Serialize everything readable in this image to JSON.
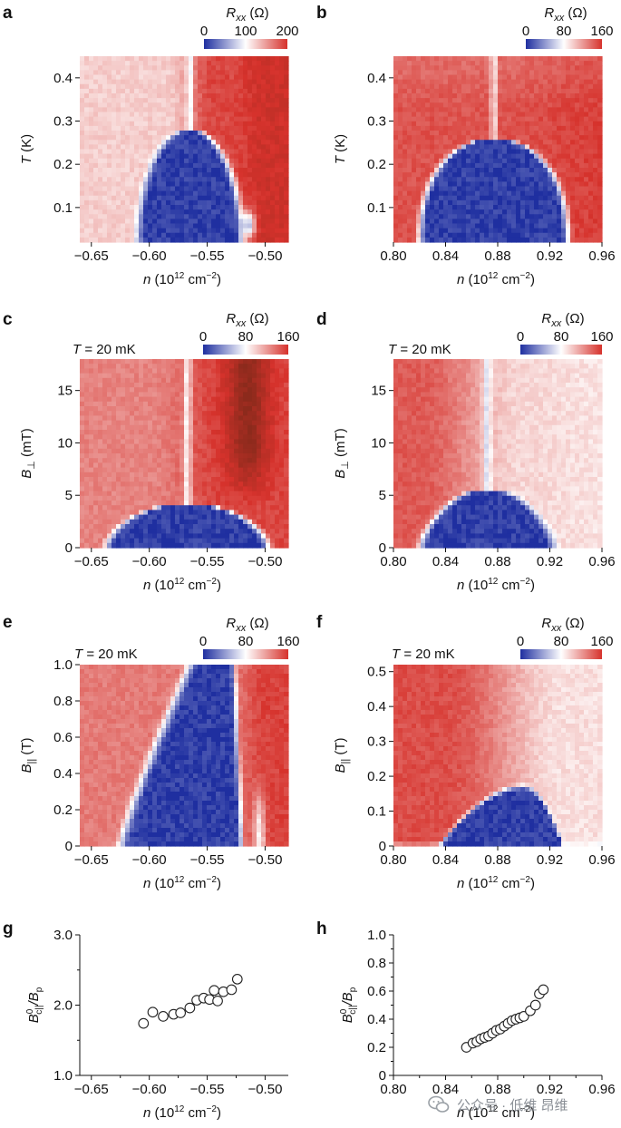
{
  "figure": {
    "panel_labels": [
      "a",
      "b",
      "c",
      "d",
      "e",
      "f",
      "g",
      "h"
    ],
    "colorbar_label": "R_xx (Ω)",
    "temperature_label": "T = 20 mK",
    "xlabel": "n (10^12 cm^-2)",
    "colors": {
      "low": "#1f2fa0",
      "mid": "#ffffff",
      "high": "#d6322c",
      "darkhigh": "#8c2a1c"
    },
    "watermark": "公众号 · 低维 昂维"
  },
  "chart_data": [
    {
      "id": "a",
      "type": "heatmap",
      "xlabel": "n (10^12 cm^-2)",
      "ylabel": "T (K)",
      "xlim": [
        -0.66,
        -0.48
      ],
      "ylim": [
        0.02,
        0.45
      ],
      "xticks": [
        -0.65,
        -0.6,
        -0.55,
        -0.5
      ],
      "xtick_labels": [
        "−0.65",
        "−0.60",
        "−0.55",
        "−0.50"
      ],
      "yticks": [
        0.1,
        0.2,
        0.3,
        0.4
      ],
      "ytick_labels": [
        "0.1",
        "0.2",
        "0.3",
        "0.4"
      ],
      "colorbar": {
        "label": "R_xx (Ω)",
        "min": 0,
        "max": 200,
        "ticks": [
          0,
          100,
          200
        ],
        "tick_labels": [
          "0",
          "100",
          "200"
        ]
      },
      "features": {
        "dome_center_n": -0.565,
        "dome_half_width": 0.045,
        "dome_peak": 0.28,
        "high_side": "right"
      }
    },
    {
      "id": "b",
      "type": "heatmap",
      "xlabel": "n (10^12 cm^-2)",
      "ylabel": "T (K)",
      "xlim": [
        0.8,
        0.96
      ],
      "ylim": [
        0.02,
        0.45
      ],
      "xticks": [
        0.8,
        0.84,
        0.88,
        0.92,
        0.96
      ],
      "xtick_labels": [
        "0.80",
        "0.84",
        "0.88",
        "0.92",
        "0.96"
      ],
      "yticks": [
        0.1,
        0.2,
        0.3,
        0.4
      ],
      "ytick_labels": [
        "0.1",
        "0.2",
        "0.3",
        "0.4"
      ],
      "colorbar": {
        "label": "R_xx (Ω)",
        "min": 0,
        "max": 160,
        "ticks": [
          0,
          80,
          160
        ],
        "tick_labels": [
          "0",
          "80",
          "160"
        ]
      },
      "features": {
        "dome_center_n": 0.877,
        "dome_half_width": 0.057,
        "dome_peak": 0.26,
        "high_side": "uniform"
      }
    },
    {
      "id": "c",
      "type": "heatmap",
      "xlabel": "n (10^12 cm^-2)",
      "ylabel": "B⊥ (mT)",
      "xlim": [
        -0.66,
        -0.48
      ],
      "ylim": [
        0,
        18
      ],
      "xticks": [
        -0.65,
        -0.6,
        -0.55,
        -0.5
      ],
      "xtick_labels": [
        "−0.65",
        "−0.60",
        "−0.55",
        "−0.50"
      ],
      "yticks": [
        0,
        5,
        10,
        15
      ],
      "ytick_labels": [
        "0",
        "5",
        "10",
        "15"
      ],
      "annotation": "T = 20 mK",
      "colorbar": {
        "label": "R_xx (Ω)",
        "min": 0,
        "max": 160,
        "ticks": [
          0,
          80,
          160
        ],
        "tick_labels": [
          "0",
          "80",
          "160"
        ]
      },
      "features": {
        "dome_center_n": -0.567,
        "dome_half_width": 0.07,
        "dome_peak": 4.2,
        "high_side": "right"
      }
    },
    {
      "id": "d",
      "type": "heatmap",
      "xlabel": "n (10^12 cm^-2)",
      "ylabel": "B⊥ (mT)",
      "xlim": [
        0.8,
        0.96
      ],
      "ylim": [
        0,
        18
      ],
      "xticks": [
        0.8,
        0.84,
        0.88,
        0.92,
        0.96
      ],
      "xtick_labels": [
        "0.80",
        "0.84",
        "0.88",
        "0.92",
        "0.96"
      ],
      "yticks": [
        0,
        5,
        10,
        15
      ],
      "ytick_labels": [
        "0",
        "5",
        "10",
        "15"
      ],
      "annotation": "T = 20 mK",
      "colorbar": {
        "label": "R_xx (Ω)",
        "min": 0,
        "max": 160,
        "ticks": [
          0,
          80,
          160
        ],
        "tick_labels": [
          "0",
          "80",
          "160"
        ]
      },
      "features": {
        "dome_center_n": 0.872,
        "dome_half_width": 0.052,
        "dome_peak": 5.6,
        "high_side": "left"
      }
    },
    {
      "id": "e",
      "type": "heatmap",
      "xlabel": "n (10^12 cm^-2)",
      "ylabel": "B|| (T)",
      "xlim": [
        -0.66,
        -0.48
      ],
      "ylim": [
        0,
        1.0
      ],
      "xticks": [
        -0.65,
        -0.6,
        -0.55,
        -0.5
      ],
      "xtick_labels": [
        "−0.65",
        "−0.60",
        "−0.55",
        "−0.50"
      ],
      "yticks": [
        0,
        0.2,
        0.4,
        0.6,
        0.8,
        1.0
      ],
      "ytick_labels": [
        "0",
        "0.2",
        "0.4",
        "0.6",
        "0.8",
        "1.0"
      ],
      "annotation": "T = 20 mK",
      "colorbar": {
        "label": "R_xx (Ω)",
        "min": 0,
        "max": 160,
        "ticks": [
          0,
          80,
          160
        ],
        "tick_labels": [
          "0",
          "80",
          "160"
        ]
      },
      "features": {
        "left_edge_bottom_n": -0.625,
        "left_edge_top_n": -0.565,
        "right_edge_bottom_n": -0.52,
        "right_edge_top_n": -0.527,
        "high_side": "right"
      }
    },
    {
      "id": "f",
      "type": "heatmap",
      "xlabel": "n (10^12 cm^-2)",
      "ylabel": "B|| (T)",
      "xlim": [
        0.8,
        0.96
      ],
      "ylim": [
        0,
        0.52
      ],
      "xticks": [
        0.8,
        0.84,
        0.88,
        0.92,
        0.96
      ],
      "xtick_labels": [
        "0.80",
        "0.84",
        "0.88",
        "0.92",
        "0.96"
      ],
      "yticks": [
        0,
        0.1,
        0.2,
        0.3,
        0.4,
        0.5
      ],
      "ytick_labels": [
        "0",
        "0.1",
        "0.2",
        "0.3",
        "0.4",
        "0.5"
      ],
      "annotation": "T = 20 mK",
      "colorbar": {
        "label": "R_xx (Ω)",
        "min": 0,
        "max": 160,
        "ticks": [
          0,
          80,
          160
        ],
        "tick_labels": [
          "0",
          "80",
          "160"
        ]
      },
      "features": {
        "dome_center_n": 0.9,
        "dome_left_width": 0.065,
        "dome_right_width": 0.03,
        "dome_peak": 0.17,
        "high_side": "left"
      }
    },
    {
      "id": "g",
      "type": "scatter",
      "xlabel": "n (10^12 cm^-2)",
      "ylabel": "B0c||/Bp",
      "xlim": [
        -0.66,
        -0.48
      ],
      "ylim": [
        1.0,
        3.0
      ],
      "xticks": [
        -0.65,
        -0.6,
        -0.55,
        -0.5
      ],
      "xtick_labels": [
        "−0.65",
        "−0.60",
        "−0.55",
        "−0.50"
      ],
      "yticks": [
        1.0,
        2.0,
        3.0
      ],
      "ytick_labels": [
        "1.0",
        "2.0",
        "3.0"
      ],
      "x": [
        -0.605,
        -0.597,
        -0.588,
        -0.579,
        -0.573,
        -0.565,
        -0.559,
        -0.553,
        -0.548,
        -0.544,
        -0.541,
        -0.536,
        -0.529,
        -0.524
      ],
      "y": [
        1.74,
        1.9,
        1.84,
        1.87,
        1.89,
        1.96,
        2.07,
        2.1,
        2.08,
        2.21,
        2.06,
        2.19,
        2.22,
        2.37
      ]
    },
    {
      "id": "h",
      "type": "scatter",
      "xlabel": "n (10^12 cm^-2)",
      "ylabel": "B0c||/Bp",
      "xlim": [
        0.8,
        0.96
      ],
      "ylim": [
        0,
        1.0
      ],
      "xticks": [
        0.8,
        0.84,
        0.88,
        0.92,
        0.96
      ],
      "xtick_labels": [
        "0.80",
        "0.84",
        "0.88",
        "0.92",
        "0.96"
      ],
      "yticks": [
        0,
        0.2,
        0.4,
        0.6,
        0.8,
        1.0
      ],
      "ytick_labels": [
        "0",
        "0.2",
        "0.4",
        "0.6",
        "0.8",
        "1.0"
      ],
      "x": [
        0.856,
        0.861,
        0.864,
        0.867,
        0.87,
        0.873,
        0.876,
        0.879,
        0.882,
        0.885,
        0.888,
        0.891,
        0.894,
        0.897,
        0.9,
        0.905,
        0.909,
        0.912,
        0.915
      ],
      "y": [
        0.2,
        0.23,
        0.24,
        0.26,
        0.27,
        0.28,
        0.3,
        0.32,
        0.33,
        0.35,
        0.37,
        0.39,
        0.4,
        0.41,
        0.42,
        0.46,
        0.5,
        0.58,
        0.61
      ]
    }
  ]
}
